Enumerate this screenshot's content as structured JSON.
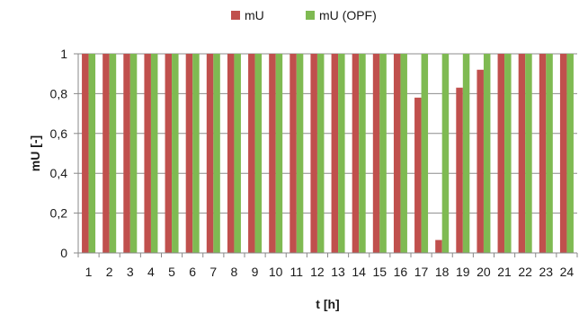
{
  "chart_data": {
    "type": "bar",
    "title": "",
    "xlabel": "t [h]",
    "ylabel": "mU [-]",
    "ylim": [
      0,
      1
    ],
    "yticks": [
      0,
      0.2,
      0.4,
      0.6,
      0.8,
      1
    ],
    "ytick_labels": [
      "0",
      "0,2",
      "0,4",
      "0,6",
      "0,8",
      "1"
    ],
    "categories": [
      "1",
      "2",
      "3",
      "4",
      "5",
      "6",
      "7",
      "8",
      "9",
      "10",
      "11",
      "12",
      "13",
      "14",
      "15",
      "16",
      "17",
      "18",
      "19",
      "20",
      "21",
      "22",
      "23",
      "24"
    ],
    "legend_position": "top",
    "grid": "horizontal",
    "series": [
      {
        "name": "mU",
        "color": "#c0504d",
        "values": [
          1,
          1,
          1,
          1,
          1,
          1,
          1,
          1,
          1,
          1,
          1,
          1,
          1,
          1,
          1,
          1,
          0.78,
          0.065,
          0.83,
          0.92,
          1,
          1,
          1,
          1
        ]
      },
      {
        "name": "mU (OPF)",
        "color": "#7fba52",
        "values": [
          1,
          1,
          1,
          1,
          1,
          1,
          1,
          1,
          1,
          1,
          1,
          1,
          1,
          1,
          1,
          1,
          1,
          1,
          1,
          1,
          1,
          1,
          1,
          1
        ]
      }
    ]
  }
}
